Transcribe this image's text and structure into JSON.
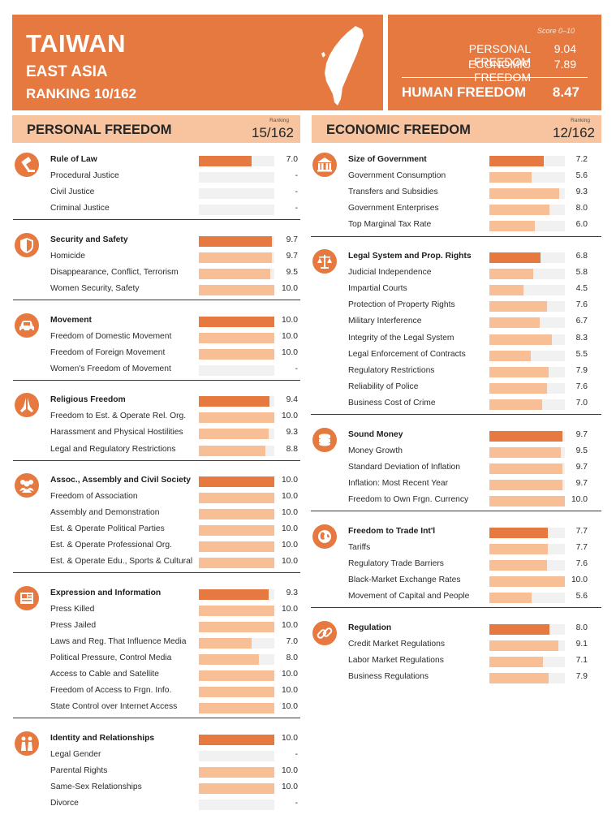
{
  "header": {
    "country": "TAIWAN",
    "region": "EAST ASIA",
    "ranking": "RANKING 10/162",
    "score_range": "Score 0–10",
    "personal_label": "PERSONAL FREEDOM",
    "personal_score": "9.04",
    "economic_label": "ECONOMIC FREEDOM",
    "economic_score": "7.89",
    "human_label": "HUMAN FREEDOM",
    "human_score": "8.47"
  },
  "personal": {
    "title": "PERSONAL FREEDOM",
    "ranking_label": "Ranking",
    "ranking": "15/162",
    "categories": [
      {
        "icon": "gavel-icon",
        "name": "Rule of Law",
        "score": "7.0",
        "value": 7.0,
        "subs": [
          {
            "name": "Procedural Justice",
            "score": "-",
            "value": null
          },
          {
            "name": "Civil Justice",
            "score": "-",
            "value": null
          },
          {
            "name": "Criminal Justice",
            "score": "-",
            "value": null
          }
        ]
      },
      {
        "icon": "shield-icon",
        "name": "Security and Safety",
        "score": "9.7",
        "value": 9.7,
        "subs": [
          {
            "name": "Homicide",
            "score": "9.7",
            "value": 9.7
          },
          {
            "name": "Disappearance, Conflict, Terrorism",
            "score": "9.5",
            "value": 9.5
          },
          {
            "name": "Women Security, Safety",
            "score": "10.0",
            "value": 10.0
          }
        ]
      },
      {
        "icon": "car-icon",
        "name": "Movement",
        "score": "10.0",
        "value": 10.0,
        "subs": [
          {
            "name": "Freedom of Domestic Movement",
            "score": "10.0",
            "value": 10.0
          },
          {
            "name": "Freedom of Foreign Movement",
            "score": "10.0",
            "value": 10.0
          },
          {
            "name": "Women's Freedom of Movement",
            "score": "-",
            "value": null
          }
        ]
      },
      {
        "icon": "praying-hands-icon",
        "name": "Religious Freedom",
        "score": "9.4",
        "value": 9.4,
        "subs": [
          {
            "name": "Freedom to Est. & Operate Rel. Org.",
            "score": "10.0",
            "value": 10.0
          },
          {
            "name": "Harassment and Physical Hostilities",
            "score": "9.3",
            "value": 9.3
          },
          {
            "name": "Legal and Regulatory Restrictions",
            "score": "8.8",
            "value": 8.8
          }
        ]
      },
      {
        "icon": "people-icon",
        "name": "Assoc., Assembly and Civil Society",
        "score": "10.0",
        "value": 10.0,
        "subs": [
          {
            "name": "Freedom of Association",
            "score": "10.0",
            "value": 10.0
          },
          {
            "name": "Assembly and Demonstration",
            "score": "10.0",
            "value": 10.0
          },
          {
            "name": "Est. & Operate Political Parties",
            "score": "10.0",
            "value": 10.0
          },
          {
            "name": "Est. & Operate Professional Org.",
            "score": "10.0",
            "value": 10.0
          },
          {
            "name": "Est. & Operate Edu., Sports & Cultural",
            "score": "10.0",
            "value": 10.0
          }
        ]
      },
      {
        "icon": "newspaper-icon",
        "name": "Expression and Information",
        "score": "9.3",
        "value": 9.3,
        "subs": [
          {
            "name": "Press Killed",
            "score": "10.0",
            "value": 10.0
          },
          {
            "name": "Press Jailed",
            "score": "10.0",
            "value": 10.0
          },
          {
            "name": "Laws and Reg. That Influence Media",
            "score": "7.0",
            "value": 7.0
          },
          {
            "name": "Political Pressure, Control Media",
            "score": "8.0",
            "value": 8.0
          },
          {
            "name": "Access to Cable and Satellite",
            "score": "10.0",
            "value": 10.0
          },
          {
            "name": "Freedom of Access to Frgn. Info.",
            "score": "10.0",
            "value": 10.0
          },
          {
            "name": "State Control over Internet Access",
            "score": "10.0",
            "value": 10.0
          }
        ]
      },
      {
        "icon": "couple-icon",
        "name": "Identity and Relationships",
        "score": "10.0",
        "value": 10.0,
        "subs": [
          {
            "name": "Legal Gender",
            "score": "-",
            "value": null
          },
          {
            "name": "Parental Rights",
            "score": "10.0",
            "value": 10.0
          },
          {
            "name": "Same-Sex Relationships",
            "score": "10.0",
            "value": 10.0
          },
          {
            "name": "Divorce",
            "score": "-",
            "value": null
          }
        ]
      }
    ]
  },
  "economic": {
    "title": "ECONOMIC FREEDOM",
    "ranking_label": "Ranking",
    "ranking": "12/162",
    "categories": [
      {
        "icon": "government-building-icon",
        "name": "Size of Government",
        "score": "7.2",
        "value": 7.2,
        "subs": [
          {
            "name": "Government Consumption",
            "score": "5.6",
            "value": 5.6
          },
          {
            "name": "Transfers and Subsidies",
            "score": "9.3",
            "value": 9.3
          },
          {
            "name": "Government Enterprises",
            "score": "8.0",
            "value": 8.0
          },
          {
            "name": "Top Marginal Tax Rate",
            "score": "6.0",
            "value": 6.0
          }
        ]
      },
      {
        "icon": "scales-icon",
        "name": "Legal System and Prop. Rights",
        "score": "6.8",
        "value": 6.8,
        "subs": [
          {
            "name": "Judicial Independence",
            "score": "5.8",
            "value": 5.8
          },
          {
            "name": "Impartial Courts",
            "score": "4.5",
            "value": 4.5
          },
          {
            "name": "Protection of Property Rights",
            "score": "7.6",
            "value": 7.6
          },
          {
            "name": "Military Interference",
            "score": "6.7",
            "value": 6.7
          },
          {
            "name": "Integrity of the Legal System",
            "score": "8.3",
            "value": 8.3
          },
          {
            "name": "Legal Enforcement of Contracts",
            "score": "5.5",
            "value": 5.5
          },
          {
            "name": "Regulatory Restrictions",
            "score": "7.9",
            "value": 7.9
          },
          {
            "name": "Reliability of Police",
            "score": "7.6",
            "value": 7.6
          },
          {
            "name": "Business Cost of Crime",
            "score": "7.0",
            "value": 7.0
          }
        ]
      },
      {
        "icon": "coins-icon",
        "name": "Sound Money",
        "score": "9.7",
        "value": 9.7,
        "subs": [
          {
            "name": "Money Growth",
            "score": "9.5",
            "value": 9.5
          },
          {
            "name": "Standard Deviation of Inflation",
            "score": "9.7",
            "value": 9.7
          },
          {
            "name": "Inflation: Most Recent Year",
            "score": "9.7",
            "value": 9.7
          },
          {
            "name": "Freedom to Own Frgn. Currency",
            "score": "10.0",
            "value": 10.0
          }
        ]
      },
      {
        "icon": "globe-icon",
        "name": "Freedom to Trade Int'l",
        "score": "7.7",
        "value": 7.7,
        "subs": [
          {
            "name": "Tariffs",
            "score": "7.7",
            "value": 7.7
          },
          {
            "name": "Regulatory Trade Barriers",
            "score": "7.6",
            "value": 7.6
          },
          {
            "name": "Black-Market Exchange Rates",
            "score": "10.0",
            "value": 10.0
          },
          {
            "name": "Movement of Capital and People",
            "score": "5.6",
            "value": 5.6
          }
        ]
      },
      {
        "icon": "chain-link-icon",
        "name": "Regulation",
        "score": "8.0",
        "value": 8.0,
        "subs": [
          {
            "name": "Credit Market Regulations",
            "score": "9.1",
            "value": 9.1
          },
          {
            "name": "Labor Market Regulations",
            "score": "7.1",
            "value": 7.1
          },
          {
            "name": "Business Regulations",
            "score": "7.9",
            "value": 7.9
          }
        ]
      }
    ]
  }
}
